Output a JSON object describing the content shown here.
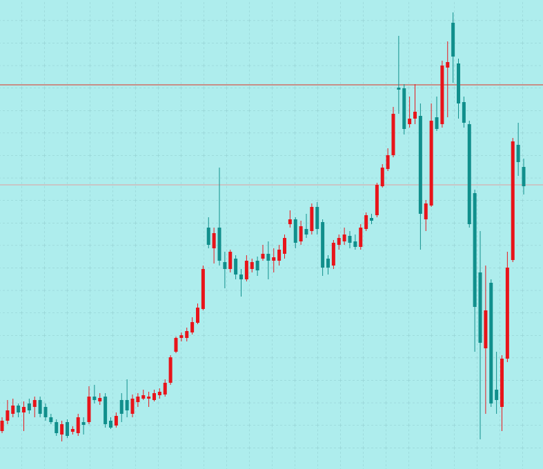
{
  "chart_data": {
    "type": "candlestick",
    "up_color": "#e8141a",
    "down_color": "#108f8c",
    "background": "#aeeded",
    "grid": true,
    "ylim": [
      0,
      680
    ],
    "hlines": [
      {
        "value": 557,
        "color": "#e0301e"
      },
      {
        "value": 412,
        "color": "#e3a0a0"
      }
    ],
    "open": [
      55,
      70,
      80,
      92,
      82,
      95,
      90,
      100,
      90,
      75,
      68,
      50,
      68,
      54,
      52,
      68,
      68,
      105,
      98,
      105,
      70,
      63,
      100,
      100,
      80,
      97,
      102,
      102,
      100,
      107,
      108,
      125,
      170,
      190,
      190,
      198,
      212,
      232,
      350,
      320,
      350,
      300,
      290,
      305,
      282,
      275,
      290,
      302,
      305,
      312,
      302,
      302,
      312,
      355,
      362,
      330,
      348,
      345,
      380,
      358,
      305,
      295,
      325,
      330,
      338,
      330,
      322,
      348,
      364,
      368,
      410,
      435,
      455,
      553,
      552,
      500,
      508,
      512,
      362,
      382,
      510,
      500,
      582,
      647,
      588,
      532,
      500,
      400,
      285,
      175,
      270,
      115,
      90,
      160,
      303,
      470,
      438
    ],
    "high": [
      75,
      100,
      102,
      95,
      98,
      102,
      105,
      105,
      95,
      80,
      72,
      70,
      72,
      62,
      80,
      75,
      120,
      122,
      110,
      110,
      75,
      82,
      110,
      130,
      108,
      110,
      115,
      112,
      115,
      117,
      130,
      165,
      192,
      198,
      205,
      220,
      240,
      295,
      365,
      350,
      437,
      315,
      318,
      310,
      290,
      310,
      305,
      308,
      325,
      330,
      320,
      325,
      340,
      375,
      365,
      360,
      370,
      385,
      387,
      362,
      310,
      332,
      340,
      350,
      345,
      340,
      355,
      372,
      370,
      415,
      442,
      465,
      525,
      628,
      558,
      540,
      558,
      530,
      390,
      530,
      540,
      592,
      620,
      662,
      595,
      540,
      505,
      405,
      345,
      295,
      275,
      170,
      165,
      315,
      480,
      502,
      450
    ],
    "low": [
      52,
      65,
      75,
      75,
      55,
      80,
      75,
      75,
      70,
      65,
      48,
      40,
      45,
      50,
      48,
      50,
      65,
      95,
      93,
      60,
      58,
      60,
      68,
      75,
      75,
      90,
      100,
      90,
      98,
      102,
      105,
      122,
      168,
      185,
      185,
      195,
      210,
      230,
      320,
      298,
      295,
      262,
      285,
      275,
      250,
      272,
      285,
      280,
      302,
      275,
      285,
      295,
      305,
      350,
      320,
      325,
      335,
      340,
      340,
      280,
      282,
      290,
      318,
      325,
      320,
      318,
      318,
      345,
      355,
      365,
      408,
      432,
      452,
      515,
      485,
      495,
      500,
      318,
      345,
      380,
      490,
      495,
      510,
      560,
      508,
      495,
      350,
      170,
      43,
      80,
      90,
      80,
      55,
      155,
      300,
      425,
      398
    ],
    "close": [
      70,
      85,
      92,
      82,
      90,
      85,
      100,
      80,
      75,
      68,
      52,
      65,
      48,
      58,
      75,
      64,
      105,
      100,
      103,
      65,
      60,
      77,
      80,
      85,
      102,
      105,
      107,
      105,
      110,
      112,
      125,
      162,
      190,
      194,
      200,
      213,
      234,
      290,
      325,
      342,
      302,
      290,
      315,
      282,
      275,
      302,
      300,
      288,
      312,
      302,
      307,
      318,
      335,
      362,
      328,
      352,
      340,
      380,
      348,
      292,
      292,
      328,
      335,
      340,
      328,
      322,
      350,
      368,
      360,
      412,
      437,
      455,
      515,
      550,
      493,
      508,
      518,
      370,
      385,
      505,
      493,
      585,
      590,
      598,
      530,
      502,
      355,
      235,
      183,
      230,
      95,
      100,
      160,
      292,
      475,
      445,
      410
    ]
  }
}
